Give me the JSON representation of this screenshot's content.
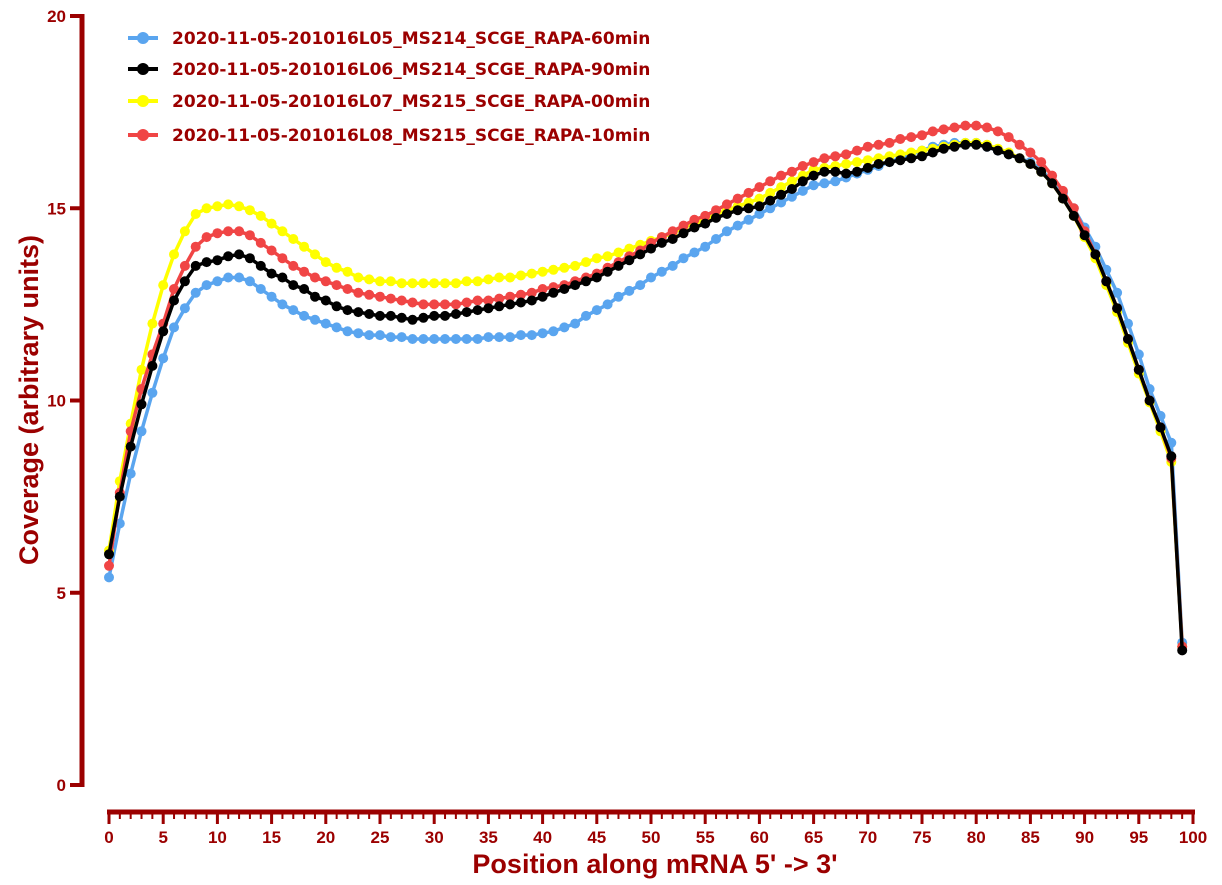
{
  "chart_data": {
    "type": "line",
    "xlabel": "Position along mRNA 5' -> 3'",
    "ylabel": "Coverage (arbitrary units)",
    "xlim": [
      0,
      100
    ],
    "ylim": [
      0,
      20
    ],
    "x_ticks": [
      0,
      5,
      10,
      15,
      20,
      25,
      30,
      35,
      40,
      45,
      50,
      55,
      60,
      65,
      70,
      75,
      80,
      85,
      90,
      95,
      100
    ],
    "y_ticks": [
      0,
      5,
      10,
      15,
      20
    ],
    "grid": false,
    "legend_position": "top-left",
    "axis_color": "#9b0000",
    "series": [
      {
        "name": "2020-11-05-201016L05_MS214_SCGE_RAPA-60min",
        "color": "#5aa5ef",
        "x": [
          0,
          1,
          2,
          3,
          4,
          5,
          6,
          7,
          8,
          9,
          10,
          11,
          12,
          13,
          14,
          15,
          16,
          17,
          18,
          19,
          20,
          21,
          22,
          23,
          24,
          25,
          26,
          27,
          28,
          29,
          30,
          31,
          32,
          33,
          34,
          35,
          36,
          37,
          38,
          39,
          40,
          41,
          42,
          43,
          44,
          45,
          46,
          47,
          48,
          49,
          50,
          51,
          52,
          53,
          54,
          55,
          56,
          57,
          58,
          59,
          60,
          61,
          62,
          63,
          64,
          65,
          66,
          67,
          68,
          69,
          70,
          71,
          72,
          73,
          74,
          75,
          76,
          77,
          78,
          79,
          80,
          81,
          82,
          83,
          84,
          85,
          86,
          87,
          88,
          89,
          90,
          91,
          92,
          93,
          94,
          95,
          96,
          97,
          98,
          99
        ],
        "values": [
          5.4,
          6.8,
          8.1,
          9.2,
          10.2,
          11.1,
          11.9,
          12.4,
          12.8,
          13.0,
          13.1,
          13.2,
          13.2,
          13.1,
          12.9,
          12.7,
          12.5,
          12.35,
          12.2,
          12.1,
          12.0,
          11.9,
          11.8,
          11.75,
          11.7,
          11.7,
          11.65,
          11.65,
          11.6,
          11.6,
          11.6,
          11.6,
          11.6,
          11.6,
          11.6,
          11.65,
          11.65,
          11.65,
          11.7,
          11.7,
          11.75,
          11.8,
          11.9,
          12.0,
          12.2,
          12.35,
          12.5,
          12.7,
          12.85,
          13.0,
          13.2,
          13.35,
          13.5,
          13.7,
          13.85,
          14.0,
          14.2,
          14.4,
          14.55,
          14.7,
          14.85,
          15.0,
          15.15,
          15.3,
          15.45,
          15.6,
          15.65,
          15.7,
          15.8,
          15.9,
          16.0,
          16.1,
          16.2,
          16.3,
          16.4,
          16.5,
          16.6,
          16.65,
          16.7,
          16.7,
          16.7,
          16.6,
          16.5,
          16.4,
          16.3,
          16.2,
          16.0,
          15.7,
          15.4,
          15.0,
          14.5,
          14.0,
          13.4,
          12.8,
          12.0,
          11.2,
          10.3,
          9.6,
          8.9,
          3.7
        ]
      },
      {
        "name": "2020-11-05-201016L06_MS214_SCGE_RAPA-90min",
        "color": "#000000",
        "x": [
          0,
          1,
          2,
          3,
          4,
          5,
          6,
          7,
          8,
          9,
          10,
          11,
          12,
          13,
          14,
          15,
          16,
          17,
          18,
          19,
          20,
          21,
          22,
          23,
          24,
          25,
          26,
          27,
          28,
          29,
          30,
          31,
          32,
          33,
          34,
          35,
          36,
          37,
          38,
          39,
          40,
          41,
          42,
          43,
          44,
          45,
          46,
          47,
          48,
          49,
          50,
          51,
          52,
          53,
          54,
          55,
          56,
          57,
          58,
          59,
          60,
          61,
          62,
          63,
          64,
          65,
          66,
          67,
          68,
          69,
          70,
          71,
          72,
          73,
          74,
          75,
          76,
          77,
          78,
          79,
          80,
          81,
          82,
          83,
          84,
          85,
          86,
          87,
          88,
          89,
          90,
          91,
          92,
          93,
          94,
          95,
          96,
          97,
          98,
          99
        ],
        "values": [
          6.0,
          7.5,
          8.8,
          9.9,
          10.9,
          11.8,
          12.6,
          13.1,
          13.5,
          13.6,
          13.65,
          13.75,
          13.8,
          13.7,
          13.5,
          13.3,
          13.2,
          13.0,
          12.9,
          12.7,
          12.6,
          12.45,
          12.35,
          12.3,
          12.25,
          12.2,
          12.2,
          12.15,
          12.1,
          12.15,
          12.2,
          12.2,
          12.25,
          12.3,
          12.35,
          12.4,
          12.45,
          12.5,
          12.55,
          12.6,
          12.7,
          12.8,
          12.9,
          13.0,
          13.1,
          13.2,
          13.35,
          13.5,
          13.65,
          13.8,
          13.95,
          14.1,
          14.2,
          14.35,
          14.5,
          14.6,
          14.75,
          14.85,
          14.95,
          15.0,
          15.05,
          15.2,
          15.35,
          15.5,
          15.7,
          15.85,
          15.95,
          15.95,
          15.9,
          15.95,
          16.05,
          16.15,
          16.2,
          16.25,
          16.3,
          16.35,
          16.45,
          16.55,
          16.6,
          16.65,
          16.65,
          16.6,
          16.5,
          16.4,
          16.3,
          16.15,
          15.95,
          15.65,
          15.25,
          14.8,
          14.3,
          13.8,
          13.1,
          12.4,
          11.6,
          10.8,
          10.0,
          9.3,
          8.55,
          3.5
        ]
      },
      {
        "name": "2020-11-05-201016L07_MS215_SCGE_RAPA-00min",
        "color": "#ffff00",
        "x": [
          0,
          1,
          2,
          3,
          4,
          5,
          6,
          7,
          8,
          9,
          10,
          11,
          12,
          13,
          14,
          15,
          16,
          17,
          18,
          19,
          20,
          21,
          22,
          23,
          24,
          25,
          26,
          27,
          28,
          29,
          30,
          31,
          32,
          33,
          34,
          35,
          36,
          37,
          38,
          39,
          40,
          41,
          42,
          43,
          44,
          45,
          46,
          47,
          48,
          49,
          50,
          51,
          52,
          53,
          54,
          55,
          56,
          57,
          58,
          59,
          60,
          61,
          62,
          63,
          64,
          65,
          66,
          67,
          68,
          69,
          70,
          71,
          72,
          73,
          74,
          75,
          76,
          77,
          78,
          79,
          80,
          81,
          82,
          83,
          84,
          85,
          86,
          87,
          88,
          89,
          90,
          91,
          92,
          93,
          94,
          95,
          96,
          97,
          98,
          99
        ],
        "values": [
          6.1,
          7.9,
          9.4,
          10.8,
          12.0,
          13.0,
          13.8,
          14.4,
          14.85,
          15.0,
          15.05,
          15.1,
          15.05,
          14.95,
          14.8,
          14.6,
          14.4,
          14.2,
          14.0,
          13.8,
          13.6,
          13.45,
          13.35,
          13.2,
          13.15,
          13.1,
          13.1,
          13.05,
          13.05,
          13.05,
          13.05,
          13.05,
          13.05,
          13.1,
          13.1,
          13.15,
          13.2,
          13.2,
          13.25,
          13.3,
          13.35,
          13.4,
          13.45,
          13.5,
          13.6,
          13.7,
          13.75,
          13.85,
          13.95,
          14.05,
          14.15,
          14.25,
          14.35,
          14.5,
          14.6,
          14.7,
          14.85,
          14.95,
          15.05,
          15.15,
          15.25,
          15.4,
          15.55,
          15.7,
          15.85,
          16.0,
          16.05,
          16.1,
          16.15,
          16.2,
          16.25,
          16.3,
          16.35,
          16.4,
          16.45,
          16.5,
          16.55,
          16.6,
          16.65,
          16.7,
          16.7,
          16.65,
          16.55,
          16.45,
          16.3,
          16.15,
          15.95,
          15.65,
          15.25,
          14.8,
          14.25,
          13.7,
          13.0,
          12.3,
          11.5,
          10.7,
          9.95,
          9.2,
          8.4,
          3.6
        ]
      },
      {
        "name": "2020-11-05-201016L08_MS215_SCGE_RAPA-10min",
        "color": "#f04545",
        "x": [
          0,
          1,
          2,
          3,
          4,
          5,
          6,
          7,
          8,
          9,
          10,
          11,
          12,
          13,
          14,
          15,
          16,
          17,
          18,
          19,
          20,
          21,
          22,
          23,
          24,
          25,
          26,
          27,
          28,
          29,
          30,
          31,
          32,
          33,
          34,
          35,
          36,
          37,
          38,
          39,
          40,
          41,
          42,
          43,
          44,
          45,
          46,
          47,
          48,
          49,
          50,
          51,
          52,
          53,
          54,
          55,
          56,
          57,
          58,
          59,
          60,
          61,
          62,
          63,
          64,
          65,
          66,
          67,
          68,
          69,
          70,
          71,
          72,
          73,
          74,
          75,
          76,
          77,
          78,
          79,
          80,
          81,
          82,
          83,
          84,
          85,
          86,
          87,
          88,
          89,
          90,
          91,
          92,
          93,
          94,
          95,
          96,
          97,
          98,
          99
        ],
        "values": [
          5.7,
          7.6,
          9.2,
          10.3,
          11.2,
          12.0,
          12.9,
          13.5,
          14.0,
          14.25,
          14.35,
          14.4,
          14.4,
          14.3,
          14.1,
          13.9,
          13.7,
          13.5,
          13.35,
          13.2,
          13.1,
          13.0,
          12.9,
          12.8,
          12.75,
          12.7,
          12.65,
          12.6,
          12.55,
          12.5,
          12.5,
          12.5,
          12.5,
          12.55,
          12.6,
          12.6,
          12.65,
          12.7,
          12.75,
          12.8,
          12.9,
          12.95,
          13.0,
          13.1,
          13.2,
          13.3,
          13.45,
          13.6,
          13.75,
          13.9,
          14.1,
          14.25,
          14.4,
          14.55,
          14.7,
          14.8,
          14.95,
          15.1,
          15.25,
          15.4,
          15.55,
          15.7,
          15.85,
          15.95,
          16.1,
          16.2,
          16.3,
          16.35,
          16.4,
          16.5,
          16.6,
          16.65,
          16.7,
          16.8,
          16.85,
          16.9,
          17.0,
          17.05,
          17.1,
          17.15,
          17.15,
          17.1,
          17.0,
          16.85,
          16.65,
          16.45,
          16.2,
          15.85,
          15.45,
          15.0,
          14.4,
          13.8,
          13.1,
          12.4,
          11.6,
          10.8,
          10.0,
          9.3,
          8.5,
          3.6
        ]
      }
    ]
  }
}
